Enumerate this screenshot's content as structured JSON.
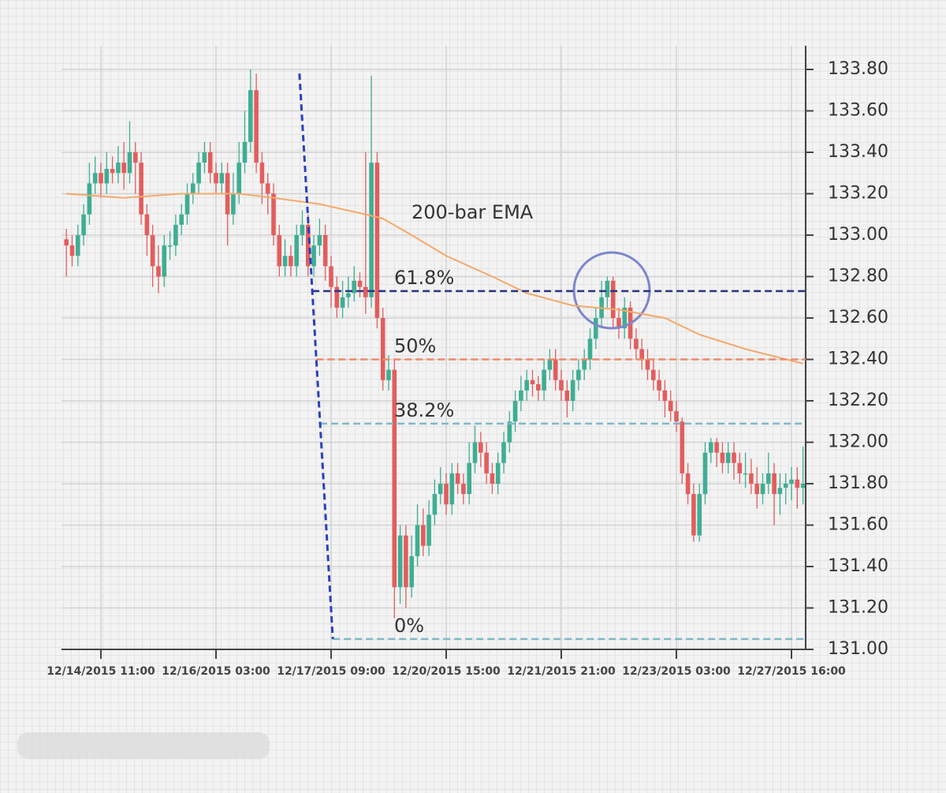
{
  "chart_data": {
    "type": "candlestick",
    "categories": [
      null,
      null,
      null,
      null,
      null,
      null,
      "12/14/2015 11:00",
      null,
      null,
      null,
      null,
      null,
      null,
      null,
      null,
      null,
      null,
      null,
      null,
      null,
      null,
      null,
      null,
      null,
      null,
      null,
      "12/16/2015 03:00",
      null,
      null,
      null,
      null,
      null,
      null,
      null,
      null,
      null,
      null,
      null,
      null,
      null,
      null,
      null,
      null,
      null,
      null,
      null,
      "12/17/2015 09:00",
      null,
      null,
      null,
      null,
      null,
      null,
      null,
      null,
      null,
      null,
      null,
      null,
      null,
      null,
      null,
      null,
      null,
      null,
      null,
      "12/20/2015 15:00",
      null,
      null,
      null,
      null,
      null,
      null,
      null,
      null,
      null,
      null,
      null,
      null,
      null,
      null,
      null,
      null,
      null,
      null,
      null,
      "12/21/2015 21:00",
      null,
      null,
      null,
      null,
      null,
      null,
      null,
      null,
      null,
      null,
      null,
      null,
      null,
      null,
      null,
      null,
      null,
      null,
      null,
      "12/23/2015 03:00",
      null,
      null,
      null,
      null,
      null,
      null,
      null,
      null,
      null,
      null,
      null,
      null,
      null,
      null,
      null,
      null,
      null,
      null,
      null,
      "12/27/2015 16:00",
      null,
      null
    ],
    "open": [
      132.98,
      132.95,
      132.9,
      133.0,
      133.1,
      133.25,
      133.3,
      133.25,
      133.32,
      133.3,
      133.35,
      133.3,
      133.4,
      133.35,
      133.1,
      133.0,
      132.85,
      132.8,
      132.95,
      132.95,
      133.05,
      133.1,
      133.2,
      133.25,
      133.35,
      133.4,
      133.3,
      133.25,
      133.3,
      133.1,
      133.2,
      133.35,
      133.45,
      133.7,
      133.35,
      133.25,
      133.2,
      133.0,
      132.85,
      132.9,
      132.85,
      133.0,
      133.05,
      132.85,
      132.95,
      133.0,
      132.85,
      132.75,
      132.65,
      132.7,
      132.72,
      132.78,
      132.75,
      132.7,
      133.35,
      132.6,
      132.3,
      132.35,
      131.3,
      131.55,
      131.3,
      131.45,
      131.6,
      131.5,
      131.65,
      131.75,
      131.8,
      131.7,
      131.85,
      131.8,
      131.75,
      131.9,
      132.0,
      131.95,
      131.85,
      131.8,
      131.9,
      132.0,
      132.1,
      132.2,
      132.25,
      132.3,
      132.28,
      132.25,
      132.35,
      132.4,
      132.3,
      132.25,
      132.2,
      132.3,
      132.35,
      132.4,
      132.5,
      132.6,
      132.7,
      132.78,
      132.6,
      132.55,
      132.65,
      132.5,
      132.45,
      132.4,
      132.35,
      132.3,
      132.25,
      132.2,
      132.15,
      132.1,
      131.85,
      131.75,
      131.55,
      131.75,
      131.95,
      132.0,
      131.95,
      131.9,
      131.95,
      131.9,
      131.85,
      131.85,
      131.8,
      131.75,
      131.8,
      131.85,
      131.75,
      131.78,
      131.8,
      131.82,
      131.78
    ],
    "high": [
      133.03,
      133.0,
      133.05,
      133.15,
      133.35,
      133.38,
      133.35,
      133.4,
      133.38,
      133.43,
      133.45,
      133.55,
      133.45,
      133.4,
      133.15,
      133.05,
      132.95,
      133.0,
      133.02,
      133.1,
      133.15,
      133.25,
      133.3,
      133.4,
      133.45,
      133.45,
      133.35,
      133.35,
      133.35,
      133.3,
      133.45,
      133.6,
      133.8,
      133.78,
      133.4,
      133.3,
      133.25,
      133.05,
      132.98,
      132.95,
      133.05,
      133.12,
      133.1,
      133.0,
      133.08,
      133.05,
      132.9,
      132.8,
      132.78,
      132.8,
      132.85,
      132.82,
      133.4,
      133.77,
      133.4,
      132.65,
      132.42,
      132.4,
      131.6,
      131.6,
      131.55,
      131.7,
      131.68,
      131.72,
      131.82,
      131.88,
      131.85,
      131.9,
      131.9,
      131.85,
      132.0,
      132.08,
      132.05,
      132.0,
      131.9,
      131.95,
      132.05,
      132.15,
      132.25,
      132.32,
      132.35,
      132.35,
      132.32,
      132.4,
      132.45,
      132.45,
      132.35,
      132.3,
      132.35,
      132.4,
      132.45,
      132.55,
      132.65,
      132.78,
      132.8,
      132.8,
      132.65,
      132.7,
      132.68,
      132.55,
      132.5,
      132.45,
      132.4,
      132.35,
      132.3,
      132.25,
      132.2,
      132.12,
      131.9,
      131.8,
      131.8,
      132.0,
      132.02,
      132.02,
      132.0,
      132.0,
      132.0,
      131.95,
      131.95,
      131.92,
      131.88,
      131.85,
      131.95,
      131.9,
      131.85,
      131.85,
      131.88,
      131.88,
      131.98
    ],
    "low": [
      132.8,
      132.85,
      132.85,
      132.95,
      133.05,
      133.2,
      133.18,
      133.2,
      133.25,
      133.25,
      133.22,
      133.25,
      133.2,
      133.05,
      132.9,
      132.75,
      132.72,
      132.75,
      132.88,
      132.9,
      133.0,
      133.05,
      133.15,
      133.2,
      133.3,
      133.25,
      133.2,
      133.2,
      132.95,
      133.05,
      133.15,
      133.3,
      133.4,
      133.3,
      133.15,
      133.1,
      132.95,
      132.8,
      132.8,
      132.8,
      132.8,
      132.95,
      132.8,
      132.8,
      132.9,
      132.78,
      132.65,
      132.6,
      132.6,
      132.65,
      132.68,
      132.7,
      132.62,
      132.65,
      132.55,
      132.25,
      132.25,
      131.15,
      131.22,
      131.2,
      131.25,
      131.4,
      131.45,
      131.45,
      131.6,
      131.7,
      131.65,
      131.65,
      131.75,
      131.7,
      131.7,
      131.85,
      131.88,
      131.8,
      131.75,
      131.75,
      131.85,
      131.95,
      132.05,
      132.15,
      132.2,
      132.22,
      132.2,
      132.2,
      132.3,
      132.25,
      132.2,
      132.12,
      132.15,
      132.25,
      132.3,
      132.35,
      132.45,
      132.55,
      132.65,
      132.55,
      132.5,
      132.5,
      132.45,
      132.4,
      132.35,
      132.3,
      132.25,
      132.2,
      132.12,
      132.1,
      132.05,
      131.8,
      131.7,
      131.52,
      131.52,
      131.7,
      131.9,
      131.88,
      131.85,
      131.85,
      131.82,
      131.8,
      131.78,
      131.75,
      131.68,
      131.7,
      131.75,
      131.6,
      131.65,
      131.7,
      131.72,
      131.68,
      131.7
    ],
    "close": [
      132.95,
      132.9,
      133.0,
      133.1,
      133.25,
      133.3,
      133.25,
      133.32,
      133.3,
      133.35,
      133.3,
      133.4,
      133.35,
      133.1,
      133.0,
      132.85,
      132.8,
      132.95,
      132.95,
      133.05,
      133.1,
      133.2,
      133.25,
      133.35,
      133.4,
      133.3,
      133.25,
      133.3,
      133.1,
      133.2,
      133.35,
      133.45,
      133.7,
      133.35,
      133.25,
      133.2,
      133.0,
      132.85,
      132.9,
      132.85,
      133.0,
      133.05,
      132.85,
      132.95,
      133.0,
      132.85,
      132.75,
      132.65,
      132.7,
      132.72,
      132.78,
      132.75,
      132.7,
      133.35,
      132.6,
      132.3,
      132.35,
      131.3,
      131.55,
      131.3,
      131.45,
      131.6,
      131.5,
      131.65,
      131.75,
      131.8,
      131.7,
      131.85,
      131.8,
      131.75,
      131.9,
      132.0,
      131.95,
      131.85,
      131.8,
      131.9,
      132.0,
      132.1,
      132.2,
      132.25,
      132.3,
      132.28,
      132.25,
      132.35,
      132.4,
      132.3,
      132.25,
      132.2,
      132.3,
      132.35,
      132.4,
      132.5,
      132.6,
      132.7,
      132.78,
      132.6,
      132.55,
      132.65,
      132.5,
      132.45,
      132.4,
      132.35,
      132.3,
      132.25,
      132.2,
      132.15,
      132.1,
      131.85,
      131.75,
      131.55,
      131.75,
      131.95,
      132.0,
      131.95,
      131.9,
      131.95,
      131.9,
      131.85,
      131.85,
      131.8,
      131.75,
      131.8,
      131.85,
      131.75,
      131.78,
      131.8,
      131.82,
      131.78,
      131.8
    ],
    "up_color": "#3fae93",
    "down_color": "#e35d5d",
    "ema": {
      "name": "200-bar EMA",
      "color": "#f5a96a",
      "x": [
        0,
        10,
        20,
        30,
        36,
        44,
        52,
        55,
        60,
        66,
        74,
        80,
        88,
        96,
        104,
        110,
        118,
        128
      ],
      "values": [
        133.2,
        133.18,
        133.2,
        133.2,
        133.18,
        133.15,
        133.1,
        133.08,
        133.0,
        132.9,
        132.8,
        132.72,
        132.66,
        132.64,
        132.6,
        132.52,
        132.45,
        132.38
      ]
    },
    "trendline": {
      "color": "#2a40bf",
      "x": [
        40.5,
        46.3
      ],
      "values": [
        133.78,
        131.05
      ]
    },
    "levels": [
      {
        "label": "61.8%",
        "value": 132.73,
        "color": "#2b3486"
      },
      {
        "label": "50%",
        "value": 132.4,
        "color": "#f0886a"
      },
      {
        "label": "38.2%",
        "value": 132.09,
        "color": "#7fb8c8"
      },
      {
        "label": "0%",
        "value": 131.05,
        "color": "#7fb8c8"
      }
    ],
    "ylim": [
      131.0,
      133.8
    ],
    "yticks": [
      {
        "value": 131.0,
        "label": "131.00"
      },
      {
        "value": 131.2,
        "label": "131.20"
      },
      {
        "value": 131.4,
        "label": "131.40"
      },
      {
        "value": 131.6,
        "label": "131.60"
      },
      {
        "value": 131.8,
        "label": "131.80"
      },
      {
        "value": 132.0,
        "label": "132.00"
      },
      {
        "value": 132.2,
        "label": "132.20"
      },
      {
        "value": 132.4,
        "label": "132.40"
      },
      {
        "value": 132.6,
        "label": "132.60"
      },
      {
        "value": 132.8,
        "label": "132.80"
      },
      {
        "value": 133.0,
        "label": "133.00"
      },
      {
        "value": 133.2,
        "label": "133.20"
      },
      {
        "value": 133.4,
        "label": "133.40"
      },
      {
        "value": 133.6,
        "label": "133.60"
      },
      {
        "value": 133.8,
        "label": "133.80"
      }
    ],
    "grid": true
  }
}
